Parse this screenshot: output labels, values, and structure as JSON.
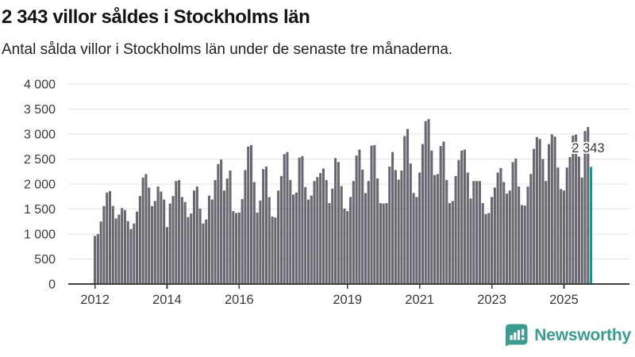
{
  "title": "2 343 villor såldes i Stockholms län",
  "subtitle": "Antal sålda villor i Stockholms län under de senaste tre månaderna.",
  "branding": {
    "logo_text": "Newsworthy",
    "color": "#3c9b91"
  },
  "colors": {
    "bar": "#6b6770",
    "highlight": "#0f9a93",
    "grid": "#e3e3e3",
    "axis": "#3f3f3f",
    "tick_text": "#3a3a3a"
  },
  "chart_data": {
    "type": "bar",
    "title": "2 343 villor såldes i Stockholms län",
    "subtitle": "Antal sålda villor i Stockholms län under de senaste tre månaderna.",
    "xlabel": "",
    "ylabel": "",
    "unit": "sålda villor per 3 månader",
    "start_month": "2012-01",
    "frequency": "monthly",
    "ylim": [
      0,
      4000
    ],
    "grid": true,
    "legend_position": "none",
    "yticks": [
      0,
      500,
      1000,
      1500,
      2000,
      2500,
      3000,
      3500,
      4000
    ],
    "ytick_labels": [
      "0",
      "500",
      "1 000",
      "1 500",
      "2 000",
      "2 500",
      "3 000",
      "3 500",
      "4 000"
    ],
    "xtick_years": [
      2012,
      2014,
      2016,
      2019,
      2021,
      2023,
      2025
    ],
    "xtick_labels": [
      "2012",
      "2014",
      "2016",
      "2019",
      "2021",
      "2023",
      "2025"
    ],
    "highlight_last_bar": true,
    "annotation": {
      "text": "2 343",
      "value": 2343
    },
    "values": [
      960,
      1000,
      1250,
      1560,
      1830,
      1860,
      1560,
      1310,
      1390,
      1520,
      1480,
      1260,
      1100,
      1210,
      1450,
      1760,
      2130,
      2200,
      1930,
      1560,
      1660,
      1950,
      1850,
      1690,
      1140,
      1610,
      1760,
      2060,
      2080,
      1740,
      1640,
      1340,
      1410,
      1870,
      1950,
      1510,
      1210,
      1290,
      1770,
      1690,
      2080,
      2400,
      2490,
      1870,
      2110,
      2270,
      1460,
      1420,
      1430,
      1700,
      2280,
      2750,
      2780,
      2040,
      1430,
      1670,
      2300,
      2350,
      1740,
      1350,
      1330,
      1870,
      2160,
      2600,
      2640,
      2080,
      1790,
      1830,
      2530,
      2560,
      1940,
      1690,
      1770,
      2060,
      2140,
      2220,
      2310,
      2080,
      1620,
      1910,
      2520,
      2440,
      1960,
      1510,
      1460,
      1740,
      2060,
      2570,
      2690,
      2290,
      1820,
      2060,
      2770,
      2780,
      2110,
      1620,
      1610,
      1620,
      2350,
      2640,
      2280,
      2090,
      2270,
      2960,
      3100,
      2410,
      1820,
      1740,
      2230,
      2800,
      3260,
      3300,
      2670,
      2180,
      2200,
      2760,
      2850,
      2080,
      1620,
      1660,
      2160,
      2480,
      2670,
      2690,
      2230,
      1710,
      2060,
      2060,
      2060,
      1620,
      1400,
      1420,
      1740,
      1930,
      2230,
      2320,
      2040,
      1810,
      1870,
      2440,
      2510,
      1950,
      1580,
      1570,
      1950,
      2200,
      2705,
      2940,
      2900,
      2500,
      2060,
      2800,
      2995,
      2950,
      2330,
      1900,
      1870,
      2330,
      2540,
      2970,
      2990,
      2550,
      2130,
      3060,
      3140,
      2343
    ]
  }
}
